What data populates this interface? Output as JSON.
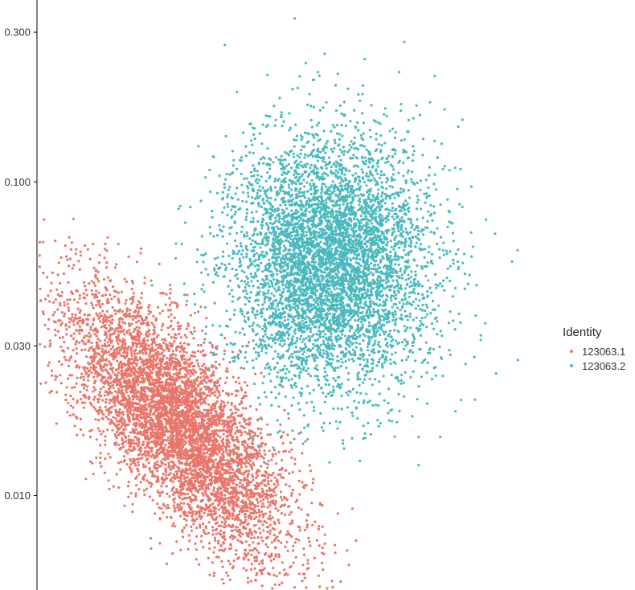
{
  "chart_data": {
    "type": "scatter",
    "title": "",
    "xlabel": "",
    "ylabel": "",
    "y_scale": "log",
    "ylim": [
      0.005,
      0.38
    ],
    "y_ticks": [
      {
        "value": 0.3,
        "label": "0.300"
      },
      {
        "value": 0.1,
        "label": "0.100"
      },
      {
        "value": 0.03,
        "label": "0.030"
      },
      {
        "value": 0.01,
        "label": "0.010"
      }
    ],
    "grid": false,
    "legend": {
      "title": "Identity",
      "position": "right"
    },
    "series": [
      {
        "name": "123063.1",
        "color": "#E8766B",
        "cluster": {
          "x_center": 0.28,
          "x_sd": 0.11,
          "y_center": 0.017,
          "log_y_sd": 0.21,
          "correlation": -0.72,
          "n_points": 5600
        }
      },
      {
        "name": "123063.2",
        "color": "#4AB9BE",
        "cluster": {
          "x_center": 0.58,
          "x_sd": 0.1,
          "y_center": 0.055,
          "log_y_sd": 0.2,
          "correlation": 0.0,
          "n_points": 5600
        }
      }
    ]
  }
}
